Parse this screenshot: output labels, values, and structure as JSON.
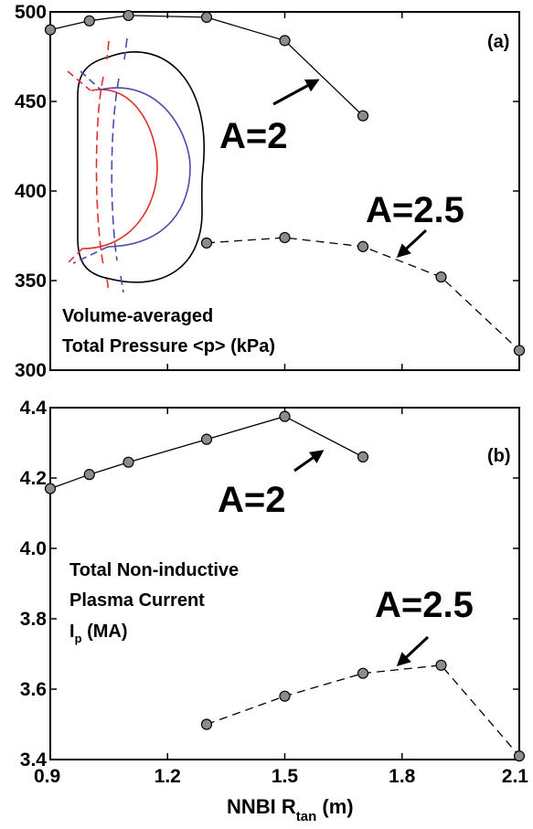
{
  "figure": {
    "xlabel": "NNBI R",
    "xlabel_sub": "tan",
    "xlabel_unit": "(m)"
  },
  "colors": {
    "inset_red": "#e0312a",
    "inset_blue": "#5147a8",
    "marker_fill": "#8c8c8c"
  },
  "chart_data": [
    {
      "type": "line",
      "panel": "(a)",
      "xlim": [
        0.9,
        2.1
      ],
      "ylim": [
        300,
        500
      ],
      "xticks": [
        0.9,
        1.2,
        1.5,
        1.8,
        2.1
      ],
      "yticks": [
        300,
        350,
        400,
        450,
        500
      ],
      "annotation_lines": [
        "Volume-averaged",
        "Total Pressure <p> (kPa)"
      ],
      "legend": "none (series labeled directly with arrows)",
      "series": [
        {
          "name": "A=2",
          "style": "solid",
          "x": [
            0.9,
            1.0,
            1.1,
            1.3,
            1.5,
            1.7
          ],
          "y": [
            490,
            495,
            498,
            497,
            484,
            442
          ]
        },
        {
          "name": "A=2.5",
          "style": "dashed",
          "x": [
            1.3,
            1.5,
            1.7,
            1.9,
            2.1
          ],
          "y": [
            371,
            374,
            369,
            352,
            311
          ]
        }
      ]
    },
    {
      "type": "line",
      "panel": "(b)",
      "xlim": [
        0.9,
        2.1
      ],
      "ylim": [
        3.4,
        4.4
      ],
      "xticks": [
        0.9,
        1.2,
        1.5,
        1.8,
        2.1
      ],
      "yticks": [
        3.4,
        3.6,
        3.8,
        4.0,
        4.2,
        4.4
      ],
      "annotation_lines": [
        "Total Non-inductive",
        "Plasma Current"
      ],
      "annotation_symbol": {
        "main": "I",
        "sub": "p",
        "unit": "(MA)"
      },
      "legend": "none (series labeled directly with arrows)",
      "series": [
        {
          "name": "A=2",
          "style": "solid",
          "x": [
            0.9,
            1.0,
            1.1,
            1.3,
            1.5,
            1.7
          ],
          "y": [
            4.17,
            4.21,
            4.245,
            4.31,
            4.375,
            4.26
          ]
        },
        {
          "name": "A=2.5",
          "style": "dashed",
          "x": [
            1.3,
            1.5,
            1.7,
            1.9,
            2.1
          ],
          "y": [
            3.5,
            3.58,
            3.645,
            3.668,
            3.41
          ]
        }
      ]
    }
  ]
}
